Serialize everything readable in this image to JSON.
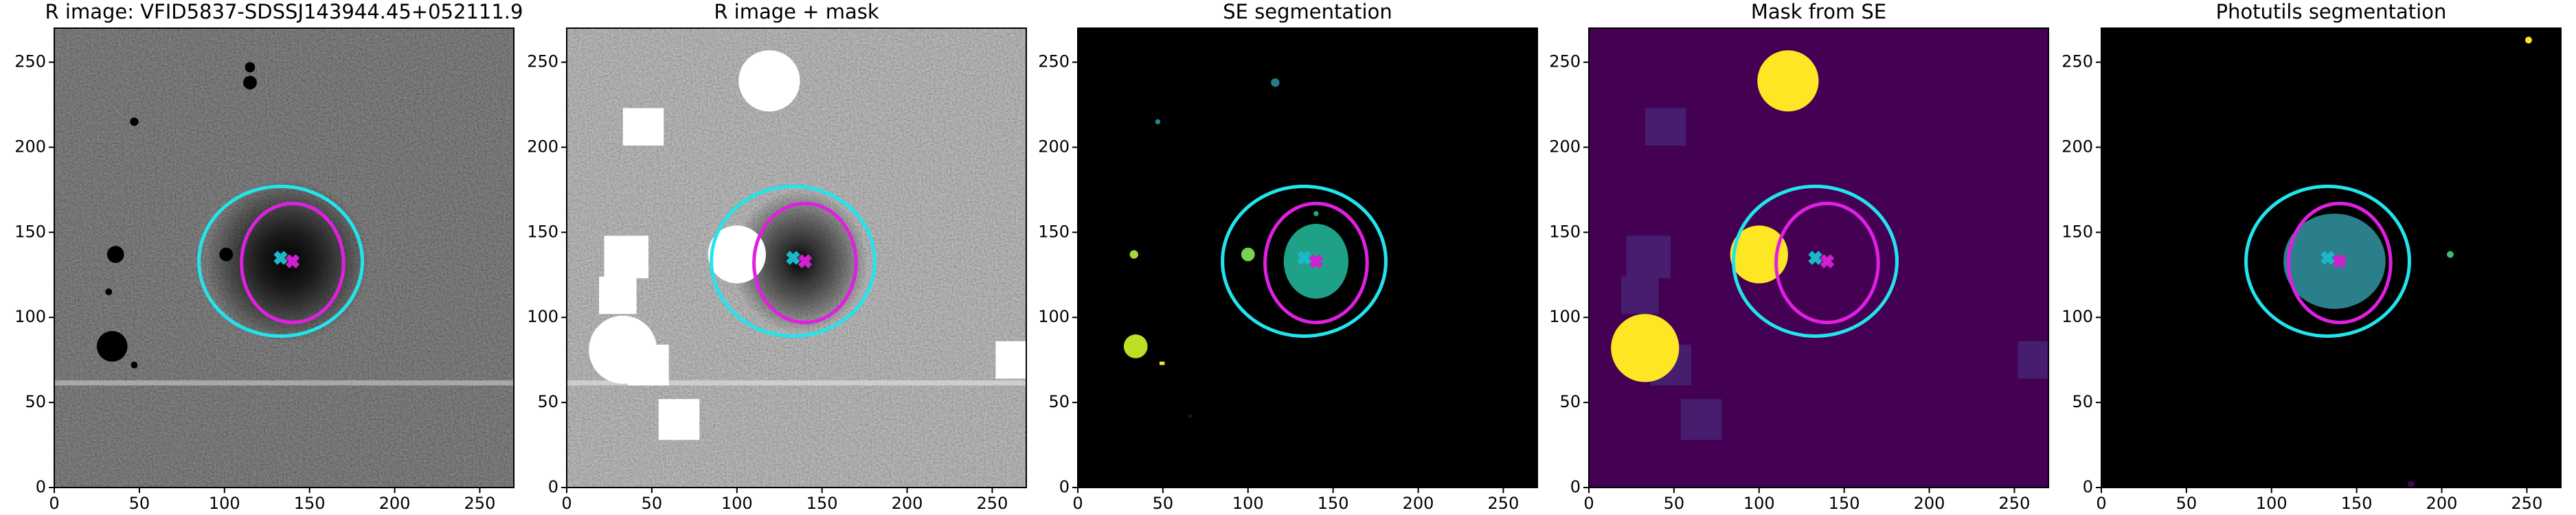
{
  "chart_data": [
    {
      "type": "image",
      "title": "R image: VFID5837-SDSSJ143944.45+052111.9",
      "xlim": [
        0,
        270
      ],
      "ylim": [
        0,
        270
      ],
      "xticks": [
        0,
        50,
        100,
        150,
        200,
        250
      ],
      "yticks": [
        0,
        50,
        100,
        150,
        200,
        250
      ]
    },
    {
      "type": "image",
      "title": "R image + mask",
      "xlim": [
        0,
        270
      ],
      "ylim": [
        0,
        270
      ],
      "xticks": [
        0,
        50,
        100,
        150,
        200,
        250
      ],
      "yticks": [
        0,
        50,
        100,
        150,
        200,
        250
      ]
    },
    {
      "type": "image",
      "title": "SE segmentation",
      "xlim": [
        0,
        270
      ],
      "ylim": [
        0,
        270
      ],
      "xticks": [
        0,
        50,
        100,
        150,
        200,
        250
      ],
      "yticks": [
        0,
        50,
        100,
        150,
        200,
        250
      ]
    },
    {
      "type": "image",
      "title": "Mask from SE",
      "xlim": [
        0,
        270
      ],
      "ylim": [
        0,
        270
      ],
      "xticks": [
        0,
        50,
        100,
        150,
        200,
        250
      ],
      "yticks": [
        0,
        50,
        100,
        150,
        200,
        250
      ]
    },
    {
      "type": "image",
      "title": "Photutils segmentation",
      "xlim": [
        0,
        270
      ],
      "ylim": [
        0,
        270
      ],
      "xticks": [
        0,
        50,
        100,
        150,
        200,
        250
      ],
      "yticks": [
        0,
        50,
        100,
        150,
        200,
        250
      ]
    }
  ]
}
